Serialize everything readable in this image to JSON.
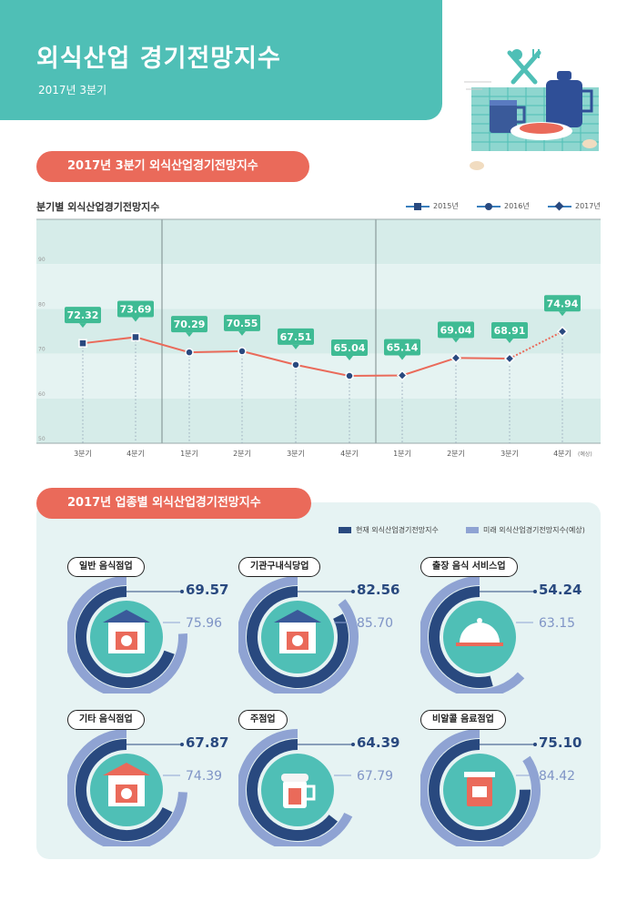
{
  "header": {
    "title": "외식산업 경기전망지수",
    "subtitle": "2017년 3분기"
  },
  "section1": {
    "pill": "2017년 3분기 외식산업경기전망지수",
    "chart_label": "분기별 외식산업경기전망지수"
  },
  "section2": {
    "pill": "2017년 업종별 외식산업경기전망지수",
    "legend_current": "현재 외식산업경기전망지수",
    "legend_future": "미래 외식산업경기전망지수(예상)"
  },
  "colors": {
    "teal": "#4fbfb6",
    "coral": "#ea6a5a",
    "navy": "#29497f",
    "light_blue": "#8fa3d3",
    "label_green": "#3fbb94",
    "panel": "#e6f3f3"
  },
  "chart_data": [
    {
      "type": "line",
      "ylim": [
        50,
        100
      ],
      "yticks": [
        50,
        60,
        70,
        80,
        90
      ],
      "categories": [
        "3분기",
        "4분기",
        "1분기",
        "2분기",
        "3분기",
        "4분기",
        "1분기",
        "2분기",
        "3분기",
        "4분기"
      ],
      "category_suffix_last": "(예상)",
      "legend": [
        "2015년",
        "2016년",
        "2017년"
      ],
      "values": [
        72.32,
        73.69,
        70.29,
        70.55,
        67.51,
        65.04,
        65.14,
        69.04,
        68.91,
        74.94
      ],
      "grid": true
    },
    {
      "type": "bar",
      "series": [
        {
          "name": "현재 외식산업경기전망지수"
        },
        {
          "name": "미래 외식산업경기전망지수(예상)"
        }
      ],
      "categories": [
        "일반 음식점업",
        "기관구내식당업",
        "출장 음식 서비스업",
        "기타 음식점업",
        "주점업",
        "비알콜 음료점업"
      ],
      "current": [
        69.57,
        82.56,
        54.24,
        67.87,
        64.39,
        75.1
      ],
      "future": [
        75.96,
        85.7,
        63.15,
        74.39,
        67.79,
        84.42
      ]
    }
  ],
  "cards": [
    {
      "label": "일반 음식점업",
      "current": "69.57",
      "future": "75.96",
      "icon": "restaurant-icon"
    },
    {
      "label": "기관구내식당업",
      "current": "82.56",
      "future": "85.70",
      "icon": "cafeteria-icon"
    },
    {
      "label": "출장 음식 서비스업",
      "current": "54.24",
      "future": "63.15",
      "icon": "cloche-icon"
    },
    {
      "label": "기타 음식점업",
      "current": "67.87",
      "future": "74.39",
      "icon": "house-plate-icon"
    },
    {
      "label": "주점업",
      "current": "64.39",
      "future": "67.79",
      "icon": "beer-icon"
    },
    {
      "label": "비알콜 음료점업",
      "current": "75.10",
      "future": "84.42",
      "icon": "drink-cup-icon"
    }
  ]
}
